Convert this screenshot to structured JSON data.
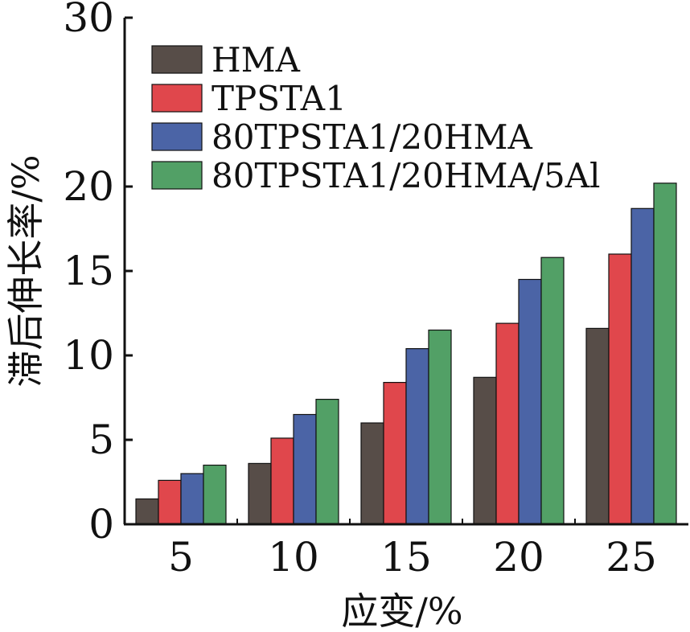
{
  "chart_data": {
    "type": "bar",
    "title": "",
    "xlabel": "应变/%",
    "ylabel": "滞后伸长率/%",
    "categories": [
      "5",
      "10",
      "15",
      "20",
      "25"
    ],
    "ylim": [
      0,
      30
    ],
    "yticks": [
      0,
      5,
      10,
      15,
      20,
      30
    ],
    "grid": false,
    "legend_position": "top-left",
    "series": [
      {
        "name": "HMA",
        "color": "#574d48",
        "values": [
          1.5,
          3.6,
          6.0,
          8.7,
          11.6
        ]
      },
      {
        "name": "TPSTA1",
        "color": "#e0474c",
        "values": [
          2.6,
          5.1,
          8.4,
          11.9,
          16.0
        ]
      },
      {
        "name": "80TPSTA1/20HMA",
        "color": "#4b64a6",
        "values": [
          3.0,
          6.5,
          10.4,
          14.5,
          18.7
        ]
      },
      {
        "name": "80TPSTA1/20HMA/5Al",
        "color": "#52a066",
        "values": [
          3.5,
          7.4,
          11.5,
          15.8,
          20.2
        ]
      }
    ]
  }
}
